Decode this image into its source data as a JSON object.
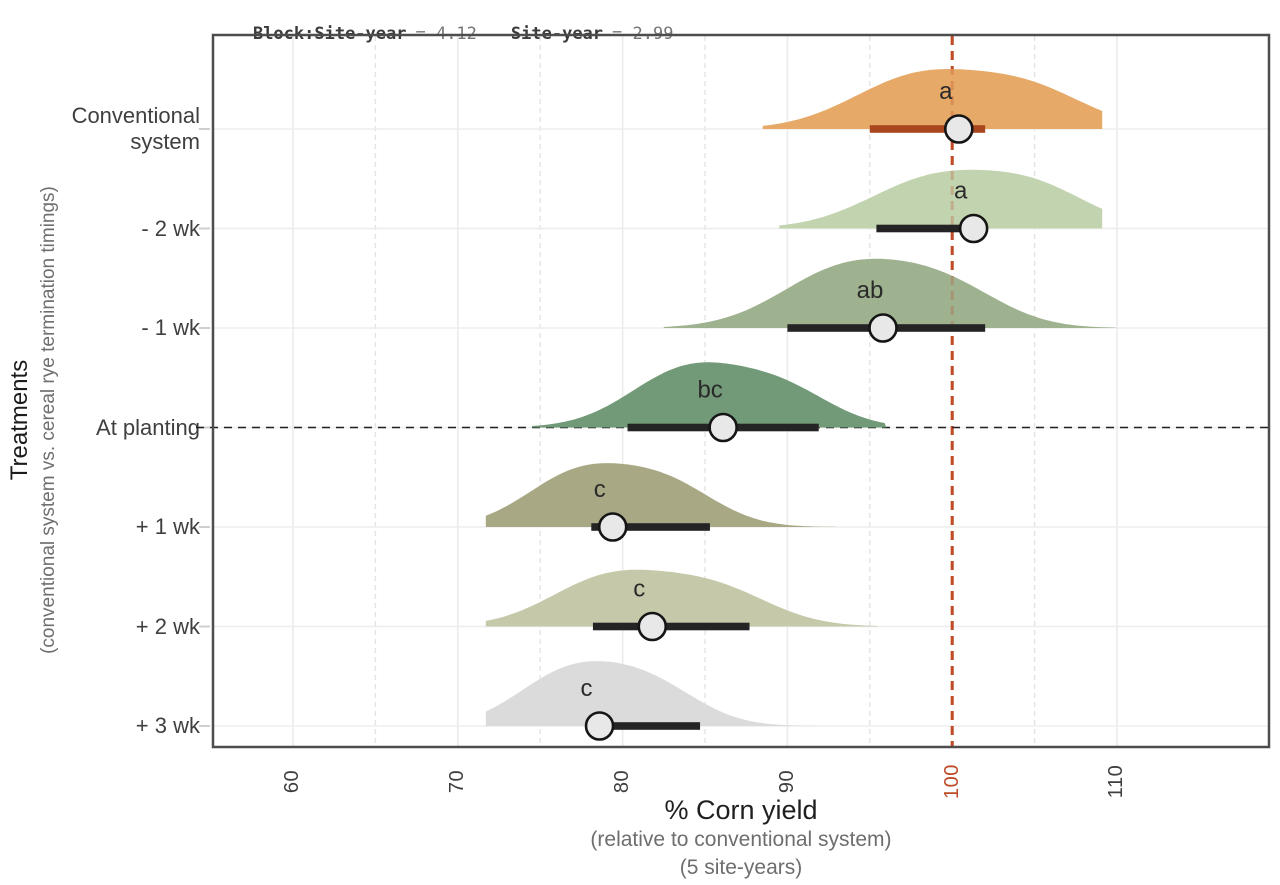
{
  "stats": {
    "block_label": "Block:Site-year",
    "block_value": "= 4.12",
    "site_label": "Site-year",
    "site_value": "= 2.99"
  },
  "axes": {
    "y_title": "Treatments",
    "y_subtitle": "(conventional system vs. cereal rye termination timings)",
    "x_title": "% Corn yield",
    "x_sub1": "(relative to conventional system)",
    "x_sub2": "(5 site-years)"
  },
  "chart_data": {
    "type": "area",
    "variant": "ridgeline-density",
    "xlabel": "% Corn yield (relative to conventional system) (5 site-years)",
    "ylabel": "Treatments (conventional system vs. cereal rye termination timings)",
    "x_ticks": [
      60,
      70,
      80,
      90,
      100,
      110
    ],
    "x_tick_labels": [
      "60",
      "70",
      "80",
      "90",
      "100",
      "110"
    ],
    "highlight_tick": "100",
    "xlim": [
      55,
      119
    ],
    "grid": true,
    "legend": false,
    "reference_line_x": 100,
    "reference_line_color": "#BE4A26",
    "point_fill": "#E8E8E8",
    "point_stroke": "#151515",
    "rows": [
      {
        "label": "Conventional\nsystem",
        "letter": "a",
        "fill": "#E6A967",
        "bar_color": "#A8471D",
        "interval": [
          95.0,
          102.0
        ],
        "point": 100.4,
        "density": {
          "bumps": [
            [
              98.0,
              4.0,
              52
            ],
            [
              104.8,
              3.5,
              36
            ]
          ],
          "range": [
            88.5,
            109.1
          ]
        },
        "dashed_baseline": false
      },
      {
        "label": "- 2 wk",
        "letter": "a",
        "fill": "#C2D3AF",
        "bar_color": "#242424",
        "interval": [
          95.4,
          101.0
        ],
        "point": 101.3,
        "density": {
          "bumps": [
            [
              99.0,
              4.0,
              50
            ],
            [
              105.3,
              3.3,
              34
            ]
          ],
          "range": [
            89.5,
            109.1
          ]
        },
        "dashed_baseline": false
      },
      {
        "label": "- 1 wk",
        "letter": "ab",
        "fill": "#9FB290",
        "bar_color": "#242424",
        "interval": [
          90.0,
          102.0
        ],
        "point": 95.8,
        "density": {
          "bumps": [
            [
              93.5,
              3.9,
              58
            ],
            [
              99.6,
              3.4,
              38
            ]
          ],
          "range": [
            82.5,
            110.0
          ]
        },
        "dashed_baseline": false
      },
      {
        "label": "At planting",
        "letter": "bc",
        "fill": "#739A78",
        "bar_color": "#242424",
        "interval": [
          80.3,
          91.9
        ],
        "point": 86.1,
        "density": {
          "bumps": [
            [
              84.0,
              3.5,
              58
            ],
            [
              89.8,
              3.0,
              34
            ]
          ],
          "range": [
            74.5,
            96.0
          ]
        },
        "dashed_baseline": true
      },
      {
        "label": "+ 1 wk",
        "letter": "c",
        "fill": "#A9A884",
        "bar_color": "#242424",
        "interval": [
          78.1,
          85.3
        ],
        "point": 79.4,
        "density": {
          "bumps": [
            [
              77.3,
              3.2,
              52
            ],
            [
              82.7,
              3.0,
              40
            ]
          ],
          "range": [
            71.7,
            93.0
          ]
        },
        "dashed_baseline": false
      },
      {
        "label": "+ 2 wk",
        "letter": "c",
        "fill": "#C5C9AA",
        "bar_color": "#242424",
        "interval": [
          78.2,
          87.7
        ],
        "point": 81.8,
        "density": {
          "bumps": [
            [
              79.2,
              3.6,
              48
            ],
            [
              85.6,
              3.4,
              36
            ]
          ],
          "range": [
            71.7,
            95.5
          ]
        },
        "dashed_baseline": false
      },
      {
        "label": "+ 3 wk",
        "letter": "c",
        "fill": "#DBDBDB",
        "bar_color": "#242424",
        "interval": [
          78.6,
          84.7
        ],
        "point": 78.6,
        "density": {
          "bumps": [
            [
              76.6,
              3.1,
              50
            ],
            [
              81.6,
              3.0,
              40
            ]
          ],
          "range": [
            71.7,
            91.5
          ]
        },
        "dashed_baseline": false
      }
    ]
  }
}
